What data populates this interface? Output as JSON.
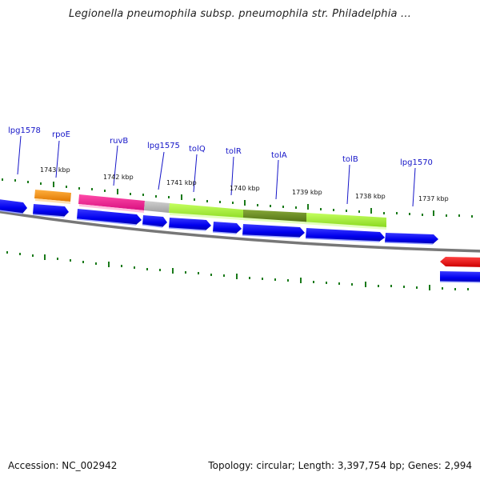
{
  "title": "Legionella pneumophila subsp. pneumophila str. Philadelphia ...",
  "footer": {
    "accession": "Accession: NC_002942",
    "summary": "Topology: circular; Length: 3,397,754 bp; Genes: 2,994"
  },
  "gene_labels": [
    "lpg1578",
    "rpoE",
    "ruvB",
    "lpg1575",
    "tolQ",
    "tolR",
    "tolA",
    "tolB",
    "lpg1570"
  ],
  "kbp_labels": [
    "1743 kbp",
    "1742 kbp",
    "1741 kbp",
    "1740 kbp",
    "1739 kbp",
    "1738 kbp",
    "1737 kbp"
  ],
  "colors": {
    "genome_line": "#777777",
    "tick": "#1a7a1a",
    "cds": "#0000ee",
    "label": "#1515c8",
    "feature_orange": "#f08c00",
    "feature_magenta": "#ee1a90",
    "feature_gray": "#b8b8b8",
    "feature_lime": "#a6f030",
    "feature_olive": "#6a8a20",
    "feature_red": "#ee0000"
  }
}
